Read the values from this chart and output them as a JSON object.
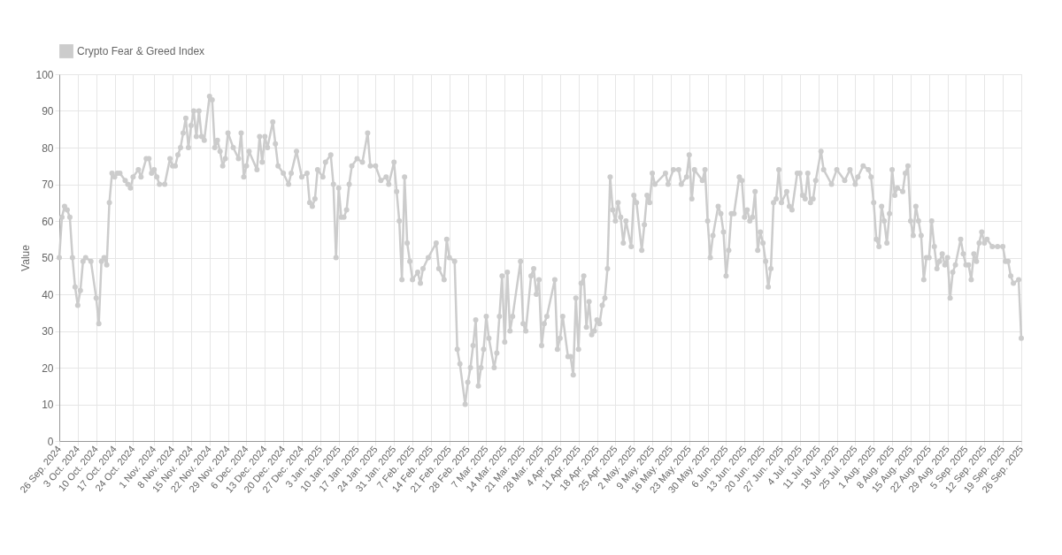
{
  "chart_data": {
    "type": "line",
    "ylabel": "Value",
    "legend": "top",
    "grid": true,
    "marker": "circle",
    "line_style": "solid",
    "ylim": [
      0,
      100
    ],
    "yticks": [
      0,
      10,
      20,
      30,
      40,
      50,
      60,
      70,
      80,
      90,
      100
    ],
    "xlim": [
      "2024-09-26",
      "2025-09-26"
    ],
    "xticks": [
      {
        "value": "2024-09-26",
        "label": "26 Sep. 2024"
      },
      {
        "value": "2024-10-03",
        "label": "3 Oct. 2024"
      },
      {
        "value": "2024-10-10",
        "label": "10 Oct. 2024"
      },
      {
        "value": "2024-10-17",
        "label": "17 Oct. 2024"
      },
      {
        "value": "2024-10-24",
        "label": "24 Oct. 2024"
      },
      {
        "value": "2024-11-01",
        "label": "1 Nov. 2024"
      },
      {
        "value": "2024-11-08",
        "label": "8 Nov. 2024"
      },
      {
        "value": "2024-11-15",
        "label": "15 Nov. 2024"
      },
      {
        "value": "2024-11-22",
        "label": "22 Nov. 2024"
      },
      {
        "value": "2024-11-29",
        "label": "29 Nov. 2024"
      },
      {
        "value": "2024-12-06",
        "label": "6 Dec. 2024"
      },
      {
        "value": "2024-12-13",
        "label": "13 Dec. 2024"
      },
      {
        "value": "2024-12-20",
        "label": "20 Dec. 2024"
      },
      {
        "value": "2024-12-27",
        "label": "27 Dec. 2024"
      },
      {
        "value": "2025-01-03",
        "label": "3 Jan. 2025"
      },
      {
        "value": "2025-01-10",
        "label": "10 Jan. 2025"
      },
      {
        "value": "2025-01-17",
        "label": "17 Jan. 2025"
      },
      {
        "value": "2025-01-24",
        "label": "24 Jan. 2025"
      },
      {
        "value": "2025-01-31",
        "label": "31 Jan. 2025"
      },
      {
        "value": "2025-02-07",
        "label": "7 Feb. 2025"
      },
      {
        "value": "2025-02-14",
        "label": "14 Feb. 2025"
      },
      {
        "value": "2025-02-21",
        "label": "21 Feb. 2025"
      },
      {
        "value": "2025-02-28",
        "label": "28 Feb. 2025"
      },
      {
        "value": "2025-03-07",
        "label": "7 Mar. 2025"
      },
      {
        "value": "2025-03-14",
        "label": "14 Mar. 2025"
      },
      {
        "value": "2025-03-21",
        "label": "21 Mar. 2025"
      },
      {
        "value": "2025-03-28",
        "label": "28 Mar. 2025"
      },
      {
        "value": "2025-04-04",
        "label": "4 Apr. 2025"
      },
      {
        "value": "2025-04-11",
        "label": "11 Apr. 2025"
      },
      {
        "value": "2025-04-18",
        "label": "18 Apr. 2025"
      },
      {
        "value": "2025-04-25",
        "label": "25 Apr. 2025"
      },
      {
        "value": "2025-05-02",
        "label": "2 May. 2025"
      },
      {
        "value": "2025-05-09",
        "label": "9 May. 2025"
      },
      {
        "value": "2025-05-16",
        "label": "16 May. 2025"
      },
      {
        "value": "2025-05-23",
        "label": "23 May. 2025"
      },
      {
        "value": "2025-05-30",
        "label": "30 May. 2025"
      },
      {
        "value": "2025-06-06",
        "label": "6 Jun. 2025"
      },
      {
        "value": "2025-06-13",
        "label": "13 Jun. 2025"
      },
      {
        "value": "2025-06-20",
        "label": "20 Jun. 2025"
      },
      {
        "value": "2025-06-27",
        "label": "27 Jun. 2025"
      },
      {
        "value": "2025-07-04",
        "label": "4 Jul. 2025"
      },
      {
        "value": "2025-07-11",
        "label": "11 Jul. 2025"
      },
      {
        "value": "2025-07-18",
        "label": "18 Jul. 2025"
      },
      {
        "value": "2025-07-25",
        "label": "25 Jul. 2025"
      },
      {
        "value": "2025-08-01",
        "label": "1 Aug. 2025"
      },
      {
        "value": "2025-08-08",
        "label": "8 Aug. 2025"
      },
      {
        "value": "2025-08-15",
        "label": "15 Aug. 2025"
      },
      {
        "value": "2025-08-22",
        "label": "22 Aug. 2025"
      },
      {
        "value": "2025-08-29",
        "label": "29 Aug. 2025"
      },
      {
        "value": "2025-09-05",
        "label": "5 Sep. 2025"
      },
      {
        "value": "2025-09-12",
        "label": "12 Sep. 2025"
      },
      {
        "value": "2025-09-19",
        "label": "19 Sep. 2025"
      },
      {
        "value": "2025-09-26",
        "label": "26 Sep. 2025"
      }
    ],
    "x": [
      "2024-09-26",
      "2024-09-27",
      "2024-09-28",
      "2024-09-29",
      "2024-09-30",
      "2024-10-01",
      "2024-10-02",
      "2024-10-03",
      "2024-10-04",
      "2024-10-05",
      "2024-10-06",
      "2024-10-08",
      "2024-10-10",
      "2024-10-11",
      "2024-10-12",
      "2024-10-13",
      "2024-10-14",
      "2024-10-15",
      "2024-10-16",
      "2024-10-17",
      "2024-10-18",
      "2024-10-19",
      "2024-10-21",
      "2024-10-22",
      "2024-10-23",
      "2024-10-24",
      "2024-10-26",
      "2024-10-27",
      "2024-10-29",
      "2024-10-30",
      "2024-10-31",
      "2024-11-01",
      "2024-11-02",
      "2024-11-03",
      "2024-11-05",
      "2024-11-07",
      "2024-11-08",
      "2024-11-09",
      "2024-11-10",
      "2024-11-11",
      "2024-11-12",
      "2024-11-13",
      "2024-11-14",
      "2024-11-15",
      "2024-11-16",
      "2024-11-17",
      "2024-11-18",
      "2024-11-19",
      "2024-11-20",
      "2024-11-22",
      "2024-11-23",
      "2024-11-24",
      "2024-11-25",
      "2024-11-26",
      "2024-11-27",
      "2024-11-28",
      "2024-11-29",
      "2024-12-01",
      "2024-12-03",
      "2024-12-04",
      "2024-12-05",
      "2024-12-06",
      "2024-12-07",
      "2024-12-10",
      "2024-12-11",
      "2024-12-12",
      "2024-12-13",
      "2024-12-14",
      "2024-12-16",
      "2024-12-17",
      "2024-12-18",
      "2024-12-20",
      "2024-12-22",
      "2024-12-23",
      "2024-12-25",
      "2024-12-27",
      "2024-12-29",
      "2024-12-30",
      "2024-12-31",
      "2025-01-01",
      "2025-01-02",
      "2025-01-04",
      "2025-01-05",
      "2025-01-07",
      "2025-01-08",
      "2025-01-09",
      "2025-01-10",
      "2025-01-11",
      "2025-01-12",
      "2025-01-13",
      "2025-01-14",
      "2025-01-15",
      "2025-01-17",
      "2025-01-19",
      "2025-01-21",
      "2025-01-22",
      "2025-01-24",
      "2025-01-26",
      "2025-01-28",
      "2025-01-29",
      "2025-01-31",
      "2025-02-01",
      "2025-02-02",
      "2025-02-03",
      "2025-02-04",
      "2025-02-05",
      "2025-02-06",
      "2025-02-07",
      "2025-02-09",
      "2025-02-10",
      "2025-02-11",
      "2025-02-13",
      "2025-02-16",
      "2025-02-17",
      "2025-02-19",
      "2025-02-20",
      "2025-02-21",
      "2025-02-23",
      "2025-02-24",
      "2025-02-25",
      "2025-02-27",
      "2025-02-28",
      "2025-03-01",
      "2025-03-02",
      "2025-03-03",
      "2025-03-04",
      "2025-03-05",
      "2025-03-06",
      "2025-03-07",
      "2025-03-08",
      "2025-03-10",
      "2025-03-11",
      "2025-03-12",
      "2025-03-13",
      "2025-03-14",
      "2025-03-15",
      "2025-03-16",
      "2025-03-17",
      "2025-03-20",
      "2025-03-21",
      "2025-03-22",
      "2025-03-24",
      "2025-03-25",
      "2025-03-26",
      "2025-03-27",
      "2025-03-28",
      "2025-03-29",
      "2025-03-30",
      "2025-04-02",
      "2025-04-03",
      "2025-04-04",
      "2025-04-05",
      "2025-04-07",
      "2025-04-08",
      "2025-04-09",
      "2025-04-10",
      "2025-04-11",
      "2025-04-12",
      "2025-04-13",
      "2025-04-14",
      "2025-04-15",
      "2025-04-16",
      "2025-04-17",
      "2025-04-18",
      "2025-04-19",
      "2025-04-20",
      "2025-04-21",
      "2025-04-22",
      "2025-04-23",
      "2025-04-24",
      "2025-04-25",
      "2025-04-26",
      "2025-04-27",
      "2025-04-28",
      "2025-04-29",
      "2025-05-01",
      "2025-05-02",
      "2025-05-03",
      "2025-05-05",
      "2025-05-06",
      "2025-05-07",
      "2025-05-08",
      "2025-05-09",
      "2025-05-10",
      "2025-05-14",
      "2025-05-15",
      "2025-05-17",
      "2025-05-19",
      "2025-05-20",
      "2025-05-22",
      "2025-05-23",
      "2025-05-24",
      "2025-05-25",
      "2025-05-28",
      "2025-05-29",
      "2025-05-30",
      "2025-05-31",
      "2025-06-01",
      "2025-06-03",
      "2025-06-04",
      "2025-06-05",
      "2025-06-06",
      "2025-06-07",
      "2025-06-08",
      "2025-06-09",
      "2025-06-11",
      "2025-06-12",
      "2025-06-13",
      "2025-06-14",
      "2025-06-15",
      "2025-06-16",
      "2025-06-17",
      "2025-06-18",
      "2025-06-19",
      "2025-06-20",
      "2025-06-21",
      "2025-06-22",
      "2025-06-23",
      "2025-06-24",
      "2025-06-25",
      "2025-06-26",
      "2025-06-27",
      "2025-06-29",
      "2025-06-30",
      "2025-07-01",
      "2025-07-03",
      "2025-07-04",
      "2025-07-05",
      "2025-07-06",
      "2025-07-07",
      "2025-07-08",
      "2025-07-09",
      "2025-07-10",
      "2025-07-12",
      "2025-07-13",
      "2025-07-16",
      "2025-07-18",
      "2025-07-21",
      "2025-07-23",
      "2025-07-25",
      "2025-07-26",
      "2025-07-28",
      "2025-07-30",
      "2025-07-31",
      "2025-08-01",
      "2025-08-02",
      "2025-08-03",
      "2025-08-04",
      "2025-08-05",
      "2025-08-06",
      "2025-08-07",
      "2025-08-08",
      "2025-08-09",
      "2025-08-10",
      "2025-08-12",
      "2025-08-13",
      "2025-08-14",
      "2025-08-15",
      "2025-08-16",
      "2025-08-17",
      "2025-08-18",
      "2025-08-19",
      "2025-08-20",
      "2025-08-21",
      "2025-08-22",
      "2025-08-23",
      "2025-08-24",
      "2025-08-25",
      "2025-08-26",
      "2025-08-27",
      "2025-08-28",
      "2025-08-29",
      "2025-08-30",
      "2025-08-31",
      "2025-09-01",
      "2025-09-03",
      "2025-09-04",
      "2025-09-05",
      "2025-09-06",
      "2025-09-07",
      "2025-09-08",
      "2025-09-09",
      "2025-09-10",
      "2025-09-11",
      "2025-09-12",
      "2025-09-13",
      "2025-09-15",
      "2025-09-17",
      "2025-09-19",
      "2025-09-20",
      "2025-09-21",
      "2025-09-22",
      "2025-09-23",
      "2025-09-25",
      "2025-09-26"
    ],
    "series": [
      {
        "name": "Crypto Fear & Greed Index",
        "color": "#cccccc",
        "values": [
          50,
          61,
          64,
          63,
          61,
          50,
          42,
          37,
          41,
          49,
          50,
          49,
          39,
          32,
          49,
          50,
          48,
          65,
          73,
          72,
          73,
          73,
          71,
          70,
          69,
          72,
          74,
          72,
          77,
          77,
          73,
          74,
          72,
          70,
          70,
          77,
          75,
          75,
          78,
          80,
          84,
          88,
          80,
          86,
          90,
          83,
          90,
          83,
          82,
          94,
          93,
          80,
          82,
          79,
          75,
          77,
          84,
          80,
          77,
          84,
          72,
          75,
          79,
          74,
          83,
          76,
          83,
          80,
          87,
          81,
          75,
          73,
          70,
          73,
          79,
          72,
          73,
          65,
          64,
          66,
          74,
          72,
          76,
          78,
          70,
          50,
          69,
          61,
          61,
          63,
          70,
          75,
          77,
          76,
          84,
          75,
          75,
          71,
          72,
          70,
          76,
          68,
          60,
          44,
          72,
          54,
          49,
          44,
          46,
          43,
          47,
          50,
          54,
          47,
          44,
          55,
          50,
          49,
          25,
          21,
          10,
          16,
          20,
          26,
          33,
          15,
          20,
          25,
          34,
          28,
          20,
          24,
          34,
          45,
          27,
          46,
          30,
          34,
          49,
          32,
          30,
          45,
          47,
          40,
          44,
          26,
          32,
          34,
          44,
          25,
          28,
          34,
          23,
          23,
          18,
          39,
          25,
          43,
          45,
          31,
          38,
          29,
          30,
          33,
          32,
          37,
          39,
          47,
          72,
          63,
          60,
          65,
          61,
          54,
          60,
          53,
          67,
          65,
          52,
          59,
          67,
          65,
          73,
          70,
          73,
          70,
          74,
          74,
          70,
          72,
          78,
          66,
          74,
          71,
          74,
          60,
          50,
          56,
          64,
          62,
          57,
          45,
          52,
          62,
          62,
          72,
          71,
          61,
          63,
          60,
          61,
          68,
          52,
          57,
          54,
          49,
          42,
          47,
          65,
          66,
          74,
          65,
          68,
          64,
          63,
          73,
          73,
          67,
          66,
          73,
          65,
          66,
          71,
          79,
          74,
          70,
          74,
          71,
          74,
          70,
          72,
          75,
          74,
          72,
          65,
          55,
          53,
          64,
          60,
          54,
          62,
          74,
          67,
          69,
          68,
          73,
          75,
          60,
          56,
          64,
          60,
          56,
          44,
          50,
          50,
          60,
          53,
          47,
          49,
          51,
          48,
          50,
          39,
          46,
          48,
          55,
          51,
          48,
          48,
          44,
          51,
          49,
          54,
          57,
          54,
          55,
          53,
          53,
          53,
          49,
          49,
          45,
          43,
          44,
          28
        ]
      }
    ]
  }
}
